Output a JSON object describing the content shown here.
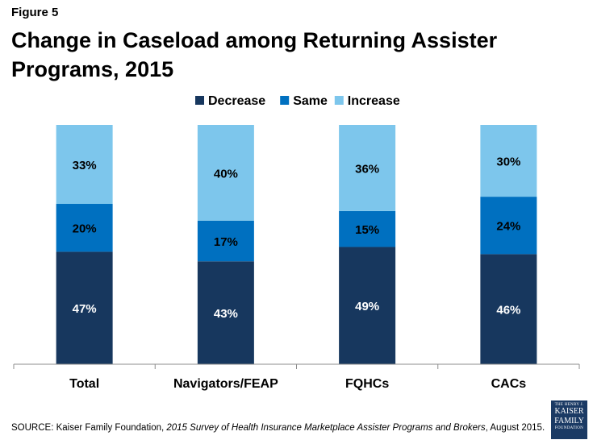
{
  "figure_label": "Figure 5",
  "title": "Change in Caseload among Returning Assister Programs, 2015",
  "source": {
    "prefix": "SOURCE: Kaiser Family Foundation, ",
    "italic": "2015 Survey of Health Insurance Marketplace Assister Programs and Brokers",
    "suffix": ", August 2015."
  },
  "logo": {
    "line1": "THE HENRY J.",
    "line2": "KAISER",
    "line3": "FAMILY",
    "line4": "FOUNDATION"
  },
  "colors": {
    "decrease": "#17375e",
    "same": "#0070c0",
    "increase": "#7dc6ec"
  },
  "chart_data": {
    "type": "bar",
    "stacked": true,
    "title": "Change in Caseload among Returning Assister Programs, 2015",
    "categories": [
      "Total",
      "Navigators/FEAP",
      "FQHCs",
      "CACs"
    ],
    "series": [
      {
        "name": "Decrease",
        "values": [
          47,
          43,
          49,
          46
        ],
        "labels": [
          "47%",
          "43%",
          "49%",
          "46%"
        ]
      },
      {
        "name": "Same",
        "values": [
          20,
          17,
          15,
          24
        ],
        "labels": [
          "20%",
          "17%",
          "15%",
          "24%"
        ]
      },
      {
        "name": "Increase",
        "values": [
          33,
          40,
          36,
          30
        ],
        "labels": [
          "33%",
          "40%",
          "36%",
          "30%"
        ]
      }
    ],
    "ylim": [
      0,
      100
    ],
    "xlabel": "",
    "ylabel": "",
    "legend_position": "top-center",
    "grid": false
  }
}
